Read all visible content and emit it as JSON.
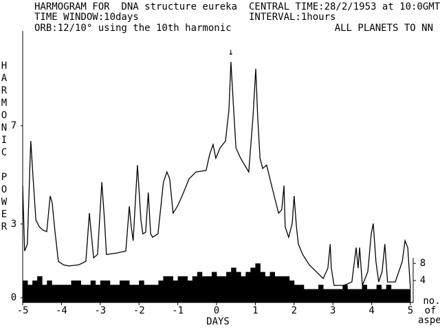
{
  "header": {
    "left": [
      "HARMOGRAM FOR  DNA structure eureka",
      "TIME WINDOW:10days",
      "ORB:12/10° using the 10th harmonic"
    ],
    "right": [
      "CENTRAL TIME:28/2/1953 at 10:0GMT",
      "INTERVAL:1hours"
    ],
    "right_note": "ALL PLANETS TO NN"
  },
  "chart_data": [
    {
      "type": "line",
      "ylabel": "HARMONIC POWER",
      "xlabel": "DAYS",
      "color": "#000000",
      "annotation": {
        "text": "↓",
        "x": 0.37
      },
      "xlim": [
        -5,
        5
      ],
      "xticks": [
        -5,
        -4,
        -3,
        -2,
        -1,
        0,
        1,
        2,
        3,
        4,
        5
      ],
      "ylim": [
        0,
        11
      ],
      "yticks": [
        0,
        3,
        7
      ],
      "x": [
        -5.0,
        -4.95,
        -4.88,
        -4.82,
        -4.79,
        -4.73,
        -4.66,
        -4.57,
        -4.47,
        -4.38,
        -4.29,
        -4.24,
        -4.17,
        -4.08,
        -3.95,
        -3.81,
        -3.55,
        -3.37,
        -3.28,
        -3.23,
        -3.17,
        -3.07,
        -2.96,
        -2.89,
        -2.84,
        -2.57,
        -2.34,
        -2.25,
        -2.2,
        -2.15,
        -2.04,
        -1.95,
        -1.9,
        -1.83,
        -1.76,
        -1.7,
        -1.65,
        -1.51,
        -1.37,
        -1.28,
        -1.21,
        -1.12,
        -1.01,
        -0.89,
        -0.71,
        -0.53,
        -0.27,
        -0.18,
        -0.09,
        -0.02,
        0.09,
        0.23,
        0.32,
        0.37,
        0.43,
        0.5,
        0.62,
        0.83,
        0.94,
        1.01,
        1.06,
        1.12,
        1.19,
        1.29,
        1.42,
        1.6,
        1.68,
        1.74,
        1.77,
        1.86,
        1.95,
        2.0,
        2.06,
        2.11,
        2.22,
        2.39,
        2.57,
        2.75,
        2.87,
        2.93,
        2.96,
        3.03,
        3.28,
        3.49,
        3.6,
        3.65,
        3.69,
        3.76,
        3.9,
        3.99,
        4.04,
        4.11,
        4.18,
        4.27,
        4.34,
        4.41,
        4.61,
        4.79,
        4.86,
        4.93,
        5.0
      ],
      "values": [
        4.56,
        1.9,
        2.18,
        5.12,
        6.38,
        4.84,
        3.16,
        2.88,
        2.74,
        2.69,
        4.14,
        3.86,
        2.74,
        1.48,
        1.34,
        1.29,
        1.34,
        1.48,
        3.44,
        2.6,
        1.62,
        1.76,
        4.7,
        3.16,
        1.76,
        1.82,
        1.9,
        3.72,
        2.88,
        2.32,
        5.4,
        3.16,
        2.6,
        2.66,
        4.28,
        2.6,
        2.46,
        2.6,
        4.7,
        5.12,
        4.84,
        3.44,
        3.72,
        4.14,
        4.84,
        5.12,
        5.18,
        5.82,
        6.24,
        5.68,
        6.1,
        6.38,
        7.64,
        9.6,
        7.92,
        6.1,
        5.68,
        5.12,
        7.36,
        9.32,
        7.36,
        5.68,
        5.26,
        5.4,
        4.56,
        3.44,
        3.58,
        4.56,
        2.88,
        2.46,
        3.02,
        4.14,
        2.88,
        2.18,
        1.76,
        1.34,
        1.06,
        0.78,
        1.2,
        2.18,
        1.2,
        0.5,
        0.5,
        0.64,
        2.04,
        1.2,
        2.04,
        0.5,
        1.06,
        2.6,
        3.02,
        1.48,
        0.64,
        1.06,
        2.18,
        0.64,
        0.64,
        1.48,
        2.32,
        2.04,
        0.36
      ]
    },
    {
      "type": "histogram",
      "ylabel": [
        "no.",
        "of",
        "aspects"
      ],
      "color": "#000000",
      "ylim": [
        0,
        63
      ],
      "yticks": [
        4,
        8
      ],
      "bins": [
        -5,
        -4.875,
        -4.75,
        -4.625,
        -4.5,
        -4.375,
        -4.25,
        -4.125,
        -4,
        -3.875,
        -3.75,
        -3.625,
        -3.5,
        -3.375,
        -3.25,
        -3.125,
        -3,
        -2.875,
        -2.75,
        -2.625,
        -2.5,
        -2.375,
        -2.25,
        -2.125,
        -2,
        -1.875,
        -1.75,
        -1.625,
        -1.5,
        -1.375,
        -1.25,
        -1.125,
        -1,
        -0.875,
        -0.75,
        -0.625,
        -0.5,
        -0.375,
        -0.25,
        -0.125,
        0,
        0.125,
        0.25,
        0.375,
        0.5,
        0.625,
        0.75,
        0.875,
        1,
        1.125,
        1.25,
        1.375,
        1.5,
        1.625,
        1.75,
        1.875,
        2,
        2.125,
        2.25,
        2.375,
        2.5,
        2.625,
        2.75,
        2.875,
        3,
        3.125,
        3.25,
        3.375,
        3.5,
        3.625,
        3.75,
        3.875,
        4,
        4.125,
        4.25,
        4.375,
        4.5,
        4.625,
        4.75,
        4.875,
        5
      ],
      "values": [
        4,
        3,
        4,
        5,
        3,
        4,
        3,
        3,
        3,
        3,
        4,
        4,
        3,
        3,
        4,
        3,
        4,
        4,
        3,
        3,
        4,
        4,
        3,
        3,
        4,
        3,
        3,
        3,
        4,
        5,
        5,
        4,
        5,
        5,
        4,
        5,
        6,
        5,
        5,
        6,
        5,
        5,
        6,
        7,
        6,
        5,
        6,
        7,
        8,
        6,
        5,
        6,
        5,
        5,
        5,
        4,
        3,
        3,
        2,
        2,
        2,
        3,
        2,
        2,
        2,
        2,
        3,
        2,
        2,
        2,
        3,
        2,
        2,
        3,
        2,
        3,
        2,
        2,
        2,
        2
      ]
    }
  ]
}
